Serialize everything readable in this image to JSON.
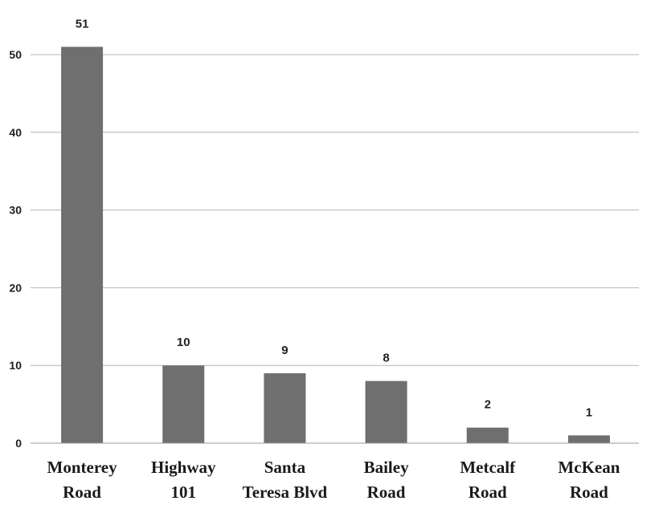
{
  "chart_data": {
    "type": "bar",
    "title": "",
    "xlabel": "",
    "ylabel": "",
    "categories": [
      [
        "Monterey",
        "Road"
      ],
      [
        "Highway",
        "101"
      ],
      [
        "Santa",
        "Teresa Blvd"
      ],
      [
        "Bailey",
        "Road"
      ],
      [
        "Metcalf",
        "Road"
      ],
      [
        "McKean",
        "Road"
      ]
    ],
    "values": [
      51,
      10,
      9,
      8,
      2,
      1
    ],
    "ylim": [
      0,
      50
    ],
    "yticks": [
      0,
      10,
      20,
      30,
      40,
      50
    ],
    "grid": true,
    "legend": "none",
    "bar_color": "#6f6f6f",
    "data_labels": true
  }
}
